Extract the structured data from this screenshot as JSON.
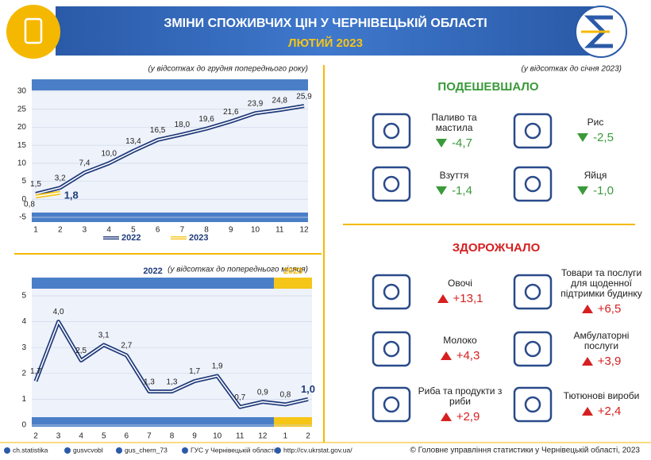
{
  "header": {
    "title": "ЗМІНИ СПОЖИВЧИХ ЦІН У ЧЕРНІВЕЦЬКІЙ ОБЛАСТІ",
    "subtitle": "ЛЮТИЙ 2023"
  },
  "chart_data": [
    {
      "type": "line",
      "subtitle": "(у відсотках до грудня попереднього року)",
      "categories": [
        "1",
        "2",
        "3",
        "4",
        "5",
        "6",
        "7",
        "8",
        "9",
        "10",
        "11",
        "12"
      ],
      "series": [
        {
          "name": "2022",
          "color": "#1f3a7a",
          "values": [
            1.5,
            3.2,
            7.4,
            10.0,
            13.4,
            16.5,
            18.0,
            19.6,
            21.6,
            23.9,
            24.8,
            25.9
          ],
          "value_labels": [
            "1,5",
            "3,2",
            "7,4",
            "10,0",
            "13,4",
            "16,5",
            "18,0",
            "19,6",
            "21,6",
            "23,9",
            "24,8",
            "25,9"
          ]
        },
        {
          "name": "2023",
          "color": "#f5c518",
          "values": [
            0.8,
            1.8,
            null,
            null,
            null,
            null,
            null,
            null,
            null,
            null,
            null,
            null
          ],
          "value_labels": [
            "0,8",
            "1,8",
            null,
            null,
            null,
            null,
            null,
            null,
            null,
            null,
            null,
            null
          ]
        }
      ],
      "ylim": [
        -5,
        30
      ],
      "yticks": [
        -5,
        0,
        5,
        10,
        15,
        20,
        25,
        30
      ],
      "grid": true,
      "legend": "bottom"
    },
    {
      "type": "line",
      "subtitle": "(у відсотках до попереднього місяця)",
      "categories": [
        "2",
        "3",
        "4",
        "5",
        "6",
        "7",
        "8",
        "9",
        "10",
        "11",
        "12",
        "1",
        "2"
      ],
      "periods": [
        {
          "label": "2022",
          "categories": 11,
          "color": "#4a7fc8"
        },
        {
          "label": "2023",
          "categories": 2,
          "color": "#f5c518"
        }
      ],
      "series": [
        {
          "color": "#1f3a7a",
          "values": [
            1.7,
            4.0,
            2.5,
            3.1,
            2.7,
            1.3,
            1.3,
            1.7,
            1.9,
            0.7,
            0.9,
            0.8,
            1.0
          ],
          "value_labels": [
            "1,7",
            "4,0",
            "2,5",
            "3,1",
            "2,7",
            "1,3",
            "1,3",
            "1,7",
            "1,9",
            "0,7",
            "0,9",
            "0,8",
            "1,0"
          ]
        }
      ],
      "ylim": [
        0,
        5
      ],
      "yticks": [
        0,
        1,
        2,
        3,
        4,
        5
      ],
      "grid": true
    }
  ],
  "cheaper": {
    "title": "ПОДЕШЕВШАЛО",
    "note": "(у відсотках до січня 2023)",
    "color": "#3a9a3a",
    "items": [
      {
        "label": "Паливо та мастила",
        "value": "-4,7"
      },
      {
        "label": "Рис",
        "value": "-2,5"
      },
      {
        "label": "Взуття",
        "value": "-1,4"
      },
      {
        "label": "Яйця",
        "value": "-1,0"
      }
    ]
  },
  "pricier": {
    "title": "ЗДОРОЖЧАЛО",
    "color": "#d62020",
    "items": [
      {
        "label": "Овочі",
        "value": "+13,1"
      },
      {
        "label": "Товари та послуги для щоденної підтримки будинку",
        "value": "+6,5"
      },
      {
        "label": "Молоко",
        "value": "+4,3"
      },
      {
        "label": "Амбулаторні послуги",
        "value": "+3,9"
      },
      {
        "label": "Риба та продукти з риби",
        "value": "+2,9"
      },
      {
        "label": "Тютюнові вироби",
        "value": "+2,4"
      }
    ]
  },
  "footer": {
    "links": [
      "ch.statistika",
      "gusvcvobl",
      "gus_chern_73",
      "ГУС у Чернівецькій області",
      "http://cv.ukrstat.gov.ua/"
    ],
    "copyright": "© Головне управління статистики у Чернівецькій області, 2023"
  }
}
